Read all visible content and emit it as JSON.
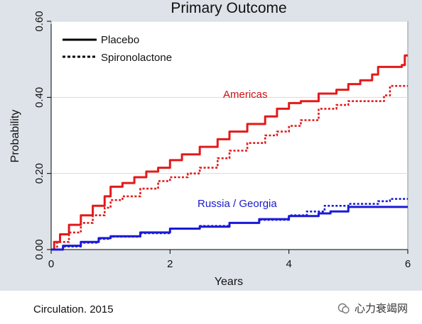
{
  "chart_data": {
    "type": "line",
    "title": "Primary Outcome",
    "xlabel": "Years",
    "ylabel": "Probability",
    "xlim": [
      0,
      6
    ],
    "ylim": [
      0,
      0.6
    ],
    "x_ticks": [
      "0",
      "2",
      "4",
      "6"
    ],
    "y_ticks": [
      "0.00",
      "0.20",
      "0.40",
      "0.60"
    ],
    "legend": [
      {
        "label": "Placebo",
        "style": "solid"
      },
      {
        "label": "Spironolactone",
        "style": "dotted"
      }
    ],
    "legend_position": "top-left",
    "annotations": {
      "americas": "Americas",
      "russia": "Russia / Georgia"
    },
    "colors": {
      "americas": "#e31a1a",
      "russia": "#1a1ad6"
    },
    "series": [
      {
        "group": "americas",
        "arm": "placebo",
        "style": "solid",
        "points": [
          [
            0,
            0
          ],
          [
            0.05,
            0.02
          ],
          [
            0.15,
            0.04
          ],
          [
            0.3,
            0.065
          ],
          [
            0.5,
            0.09
          ],
          [
            0.7,
            0.115
          ],
          [
            0.9,
            0.14
          ],
          [
            1.0,
            0.165
          ],
          [
            1.2,
            0.175
          ],
          [
            1.4,
            0.19
          ],
          [
            1.6,
            0.205
          ],
          [
            1.8,
            0.215
          ],
          [
            2.0,
            0.235
          ],
          [
            2.2,
            0.25
          ],
          [
            2.5,
            0.27
          ],
          [
            2.8,
            0.29
          ],
          [
            3.0,
            0.31
          ],
          [
            3.3,
            0.33
          ],
          [
            3.6,
            0.35
          ],
          [
            3.8,
            0.37
          ],
          [
            4.0,
            0.385
          ],
          [
            4.2,
            0.39
          ],
          [
            4.5,
            0.41
          ],
          [
            4.8,
            0.42
          ],
          [
            5.0,
            0.435
          ],
          [
            5.2,
            0.445
          ],
          [
            5.4,
            0.46
          ],
          [
            5.5,
            0.48
          ],
          [
            5.6,
            0.48
          ],
          [
            5.9,
            0.485
          ],
          [
            5.95,
            0.51
          ],
          [
            6.0,
            0.51
          ]
        ]
      },
      {
        "group": "americas",
        "arm": "spironolactone",
        "style": "dotted",
        "points": [
          [
            0,
            0
          ],
          [
            0.1,
            0.02
          ],
          [
            0.3,
            0.045
          ],
          [
            0.5,
            0.07
          ],
          [
            0.7,
            0.09
          ],
          [
            0.9,
            0.11
          ],
          [
            1.0,
            0.13
          ],
          [
            1.2,
            0.14
          ],
          [
            1.5,
            0.16
          ],
          [
            1.8,
            0.18
          ],
          [
            2.0,
            0.19
          ],
          [
            2.3,
            0.2
          ],
          [
            2.5,
            0.215
          ],
          [
            2.8,
            0.24
          ],
          [
            3.0,
            0.26
          ],
          [
            3.3,
            0.28
          ],
          [
            3.6,
            0.3
          ],
          [
            3.8,
            0.31
          ],
          [
            4.0,
            0.325
          ],
          [
            4.2,
            0.34
          ],
          [
            4.5,
            0.37
          ],
          [
            4.8,
            0.38
          ],
          [
            5.0,
            0.39
          ],
          [
            5.3,
            0.39
          ],
          [
            5.5,
            0.39
          ],
          [
            5.6,
            0.405
          ],
          [
            5.7,
            0.43
          ],
          [
            6.0,
            0.43
          ]
        ]
      },
      {
        "group": "russia",
        "arm": "placebo",
        "style": "solid",
        "points": [
          [
            0,
            0
          ],
          [
            0.2,
            0.01
          ],
          [
            0.5,
            0.02
          ],
          [
            0.8,
            0.03
          ],
          [
            1.0,
            0.035
          ],
          [
            1.5,
            0.045
          ],
          [
            2.0,
            0.055
          ],
          [
            2.5,
            0.06
          ],
          [
            3.0,
            0.07
          ],
          [
            3.5,
            0.08
          ],
          [
            4.0,
            0.088
          ],
          [
            4.5,
            0.095
          ],
          [
            4.7,
            0.1
          ],
          [
            5.0,
            0.112
          ],
          [
            5.5,
            0.112
          ],
          [
            6.0,
            0.112
          ]
        ]
      },
      {
        "group": "russia",
        "arm": "spironolactone",
        "style": "dotted",
        "points": [
          [
            0,
            0
          ],
          [
            0.2,
            0.008
          ],
          [
            0.5,
            0.018
          ],
          [
            0.8,
            0.028
          ],
          [
            1.0,
            0.034
          ],
          [
            1.5,
            0.043
          ],
          [
            2.0,
            0.055
          ],
          [
            2.5,
            0.062
          ],
          [
            3.0,
            0.07
          ],
          [
            3.5,
            0.078
          ],
          [
            4.0,
            0.09
          ],
          [
            4.3,
            0.1
          ],
          [
            4.6,
            0.115
          ],
          [
            5.0,
            0.12
          ],
          [
            5.5,
            0.127
          ],
          [
            5.7,
            0.133
          ],
          [
            6.0,
            0.133
          ]
        ]
      }
    ]
  },
  "footer": {
    "source": "Circulation. 2015",
    "watermark": "心力衰竭网"
  }
}
